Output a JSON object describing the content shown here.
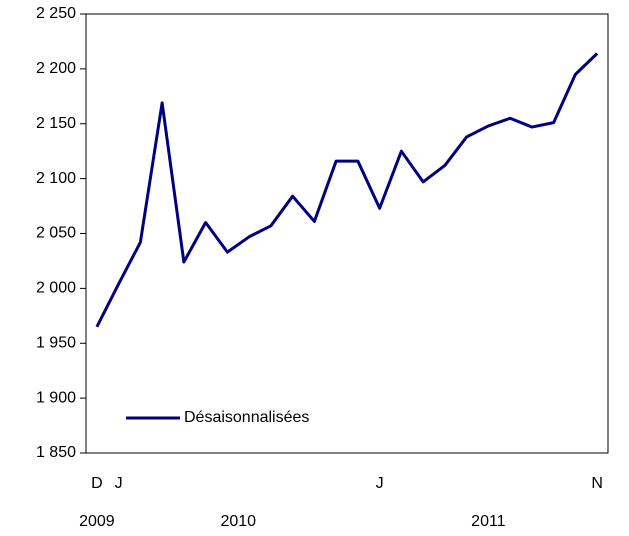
{
  "chart_data": {
    "type": "line",
    "categories": [
      "D",
      "J",
      null,
      null,
      null,
      null,
      null,
      null,
      null,
      null,
      null,
      null,
      null,
      "J",
      null,
      null,
      null,
      null,
      null,
      null,
      null,
      null,
      null,
      "N"
    ],
    "year_groups": [
      {
        "label": "2009",
        "count": 1
      },
      {
        "label": "2010",
        "count": 12
      },
      {
        "label": "2011",
        "count": 11
      }
    ],
    "series": [
      {
        "name": "Désaisonnalisées",
        "color": "#000080",
        "values": [
          1965,
          2004,
          2042,
          2169,
          2024,
          2060,
          2033,
          2047,
          2057,
          2084,
          2061,
          2116,
          2116,
          2073,
          2125,
          2097,
          2112,
          2138,
          2148,
          2155,
          2147,
          2151,
          2195,
          2214
        ]
      }
    ],
    "ylim": [
      1850,
      2250
    ],
    "yticks": [
      {
        "value": 1850,
        "label": "1 850"
      },
      {
        "value": 1900,
        "label": "1 900"
      },
      {
        "value": 1950,
        "label": "1 950"
      },
      {
        "value": 2000,
        "label": "2 000"
      },
      {
        "value": 2050,
        "label": "2 050"
      },
      {
        "value": 2100,
        "label": "2 100"
      },
      {
        "value": 2150,
        "label": "2 150"
      },
      {
        "value": 2200,
        "label": "2 200"
      },
      {
        "value": 2250,
        "label": "2 250"
      }
    ],
    "legend": "lower-left"
  }
}
